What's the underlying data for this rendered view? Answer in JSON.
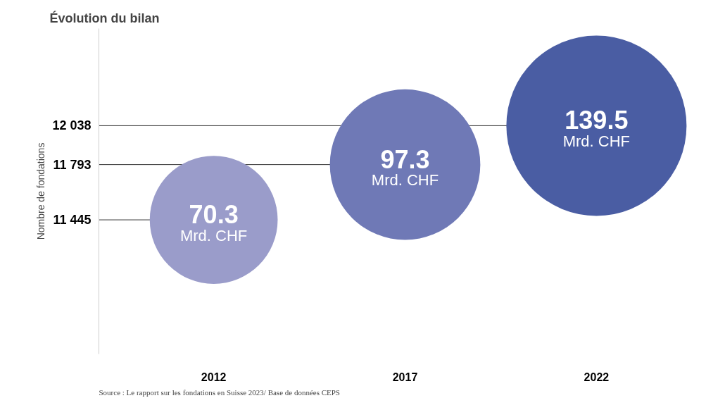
{
  "chart_data": {
    "type": "bubble",
    "title": "Évolution du bilan",
    "ylabel": "Nombre de fondations",
    "categories": [
      "2012",
      "2017",
      "2022"
    ],
    "values": [
      11445,
      11793,
      12038
    ],
    "sizes": [
      0.504,
      0.697,
      1
    ],
    "colors": [
      "#9a9cca",
      "#6f79b6",
      "#4a5da3"
    ],
    "ylim": [
      10600,
      12650
    ],
    "yticks": [
      {
        "value": 11445,
        "label": "11 445"
      },
      {
        "value": 11793,
        "label": "11 793"
      },
      {
        "value": 12038,
        "label": "12 038"
      }
    ],
    "grid": "y",
    "annotations": [
      {
        "text": "70.3",
        "x": "2012",
        "y": 11445
      },
      {
        "text": "97.3",
        "x": "2017",
        "y": 11793
      },
      {
        "text": "139.5",
        "x": "2022",
        "y": 12038
      },
      {
        "text": "Mrd. CHF",
        "x": "2012",
        "y": 11445
      },
      {
        "text": "Mrd. CHF",
        "x": "2017",
        "y": 11793
      },
      {
        "text": "Mrd. CHF",
        "x": "2022",
        "y": 12038
      },
      "Source : Le rapport sur les fondations en Suisse 2023/ Base de données CEPS"
    ]
  }
}
